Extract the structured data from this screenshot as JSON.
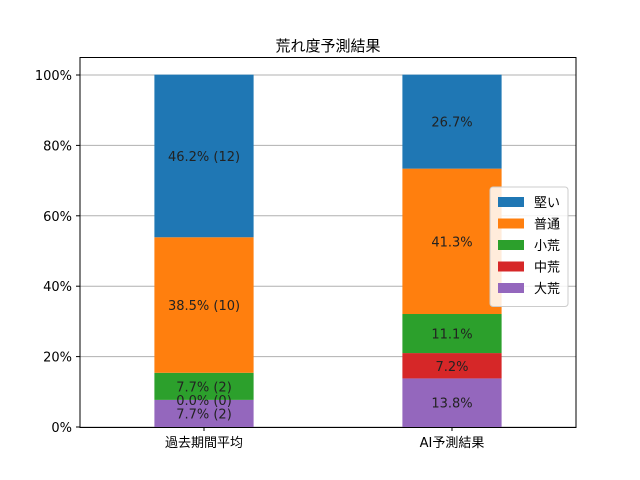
{
  "chart_data": {
    "type": "bar",
    "stacked": true,
    "title": "荒れ度予測結果",
    "xlabel": "",
    "ylabel": "",
    "ylim": [
      0,
      100
    ],
    "y_ticks": [
      "0%",
      "20%",
      "40%",
      "60%",
      "80%",
      "100%"
    ],
    "categories": [
      "過去期間平均",
      "AI予測結果"
    ],
    "grid": "horizontal",
    "legend_position": "right",
    "series": [
      {
        "name": "大荒",
        "color": "#9467bd",
        "values": [
          7.7,
          13.8
        ],
        "labels": [
          "7.7% (2)",
          "13.8%"
        ]
      },
      {
        "name": "中荒",
        "color": "#d62728",
        "values": [
          0.0,
          7.2
        ],
        "labels": [
          "0.0% (0)",
          "7.2%"
        ]
      },
      {
        "name": "小荒",
        "color": "#2ca02c",
        "values": [
          7.7,
          11.1
        ],
        "labels": [
          "7.7% (2)",
          "11.1%"
        ]
      },
      {
        "name": "普通",
        "color": "#ff7f0e",
        "values": [
          38.5,
          41.3
        ],
        "labels": [
          "38.5% (10)",
          "41.3%"
        ]
      },
      {
        "name": "堅い",
        "color": "#1f77b4",
        "values": [
          46.2,
          26.7
        ],
        "labels": [
          "46.2% (12)",
          "26.7%"
        ]
      }
    ],
    "legend_order": [
      "堅い",
      "普通",
      "小荒",
      "中荒",
      "大荒"
    ]
  }
}
